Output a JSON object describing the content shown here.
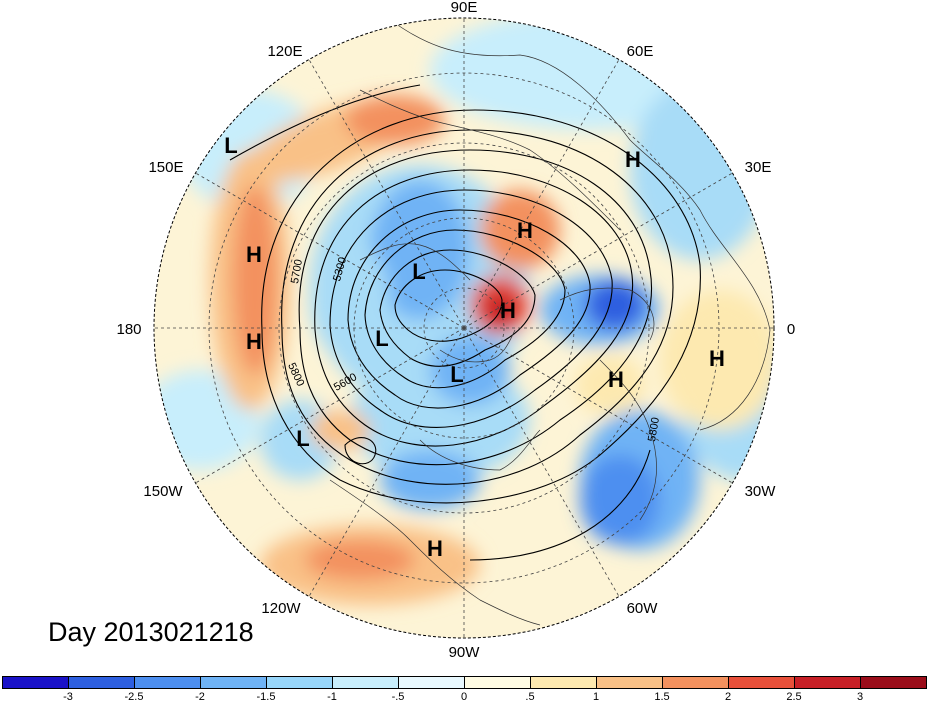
{
  "map": {
    "timestamp_label": "Day 2013021218",
    "longitude_labels": {
      "top": "90E",
      "upper_left": "120E",
      "upper_right": "60E",
      "left_upper": "150E",
      "right_upper": "30E",
      "left": "180",
      "right": "0",
      "left_lower": "150W",
      "right_lower": "30W",
      "lower_left": "120W",
      "lower_right": "60W",
      "bottom": "90W"
    },
    "pressure_centers": [
      {
        "label": "L"
      },
      {
        "label": "H"
      },
      {
        "label": "H"
      },
      {
        "label": "H"
      },
      {
        "label": "L"
      },
      {
        "label": "H"
      },
      {
        "label": "L"
      },
      {
        "label": "H"
      },
      {
        "label": "L"
      },
      {
        "label": "H"
      },
      {
        "label": "H"
      },
      {
        "label": "L"
      },
      {
        "label": "H"
      }
    ],
    "contour_labels": [
      "5300",
      "5700",
      "5600",
      "5800",
      "5800"
    ]
  },
  "colorbar": {
    "ticks": [
      "-3",
      "-2.5",
      "-2",
      "-1.5",
      "-1",
      "-.5",
      "0",
      ".5",
      "1",
      "1.5",
      "2",
      "2.5",
      "3"
    ],
    "colors": [
      "#1a12c8",
      "#2d5fe0",
      "#4d8ff0",
      "#6fb3f5",
      "#98d6fa",
      "#c8eefc",
      "#e8f8fe",
      "#fefbe3",
      "#fde9b0",
      "#f9c187",
      "#f3915e",
      "#e8503a",
      "#c71f26",
      "#9b0d1a"
    ]
  }
}
